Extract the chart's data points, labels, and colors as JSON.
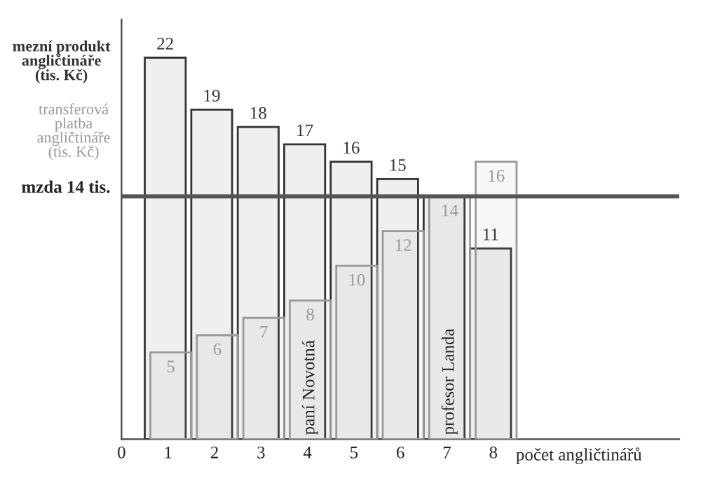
{
  "chart_data": {
    "type": "bar",
    "x": [
      1,
      2,
      3,
      4,
      5,
      6,
      7,
      8
    ],
    "series": [
      {
        "name": "mezní produkt angličtináře (tis. Kč)",
        "color": "#333333",
        "values": [
          22,
          19,
          18,
          17,
          16,
          15,
          14,
          11
        ],
        "value_labels": [
          "22",
          "19",
          "18",
          "17",
          "16",
          "15",
          null,
          "11"
        ]
      },
      {
        "name": "transferová platba angličtináře (tis. Kč)",
        "color": "#999999",
        "values": [
          5,
          6,
          7,
          8,
          10,
          12,
          14,
          16
        ],
        "value_labels": [
          "5",
          "6",
          "7",
          "8",
          "10",
          "12",
          "14",
          "16"
        ]
      }
    ],
    "xlim": [
      0,
      12
    ],
    "xticks": [
      0,
      1,
      2,
      3,
      4,
      5,
      6,
      7,
      8
    ],
    "xlabel": "počet angličtinářů",
    "tick_labels": "x",
    "ref_lines": [
      {
        "axis": "y",
        "value": 14,
        "label": "mzda 14 tis.",
        "color": "#555555"
      }
    ],
    "annotations": [
      "paní Novotná",
      "profesor Landa"
    ]
  }
}
